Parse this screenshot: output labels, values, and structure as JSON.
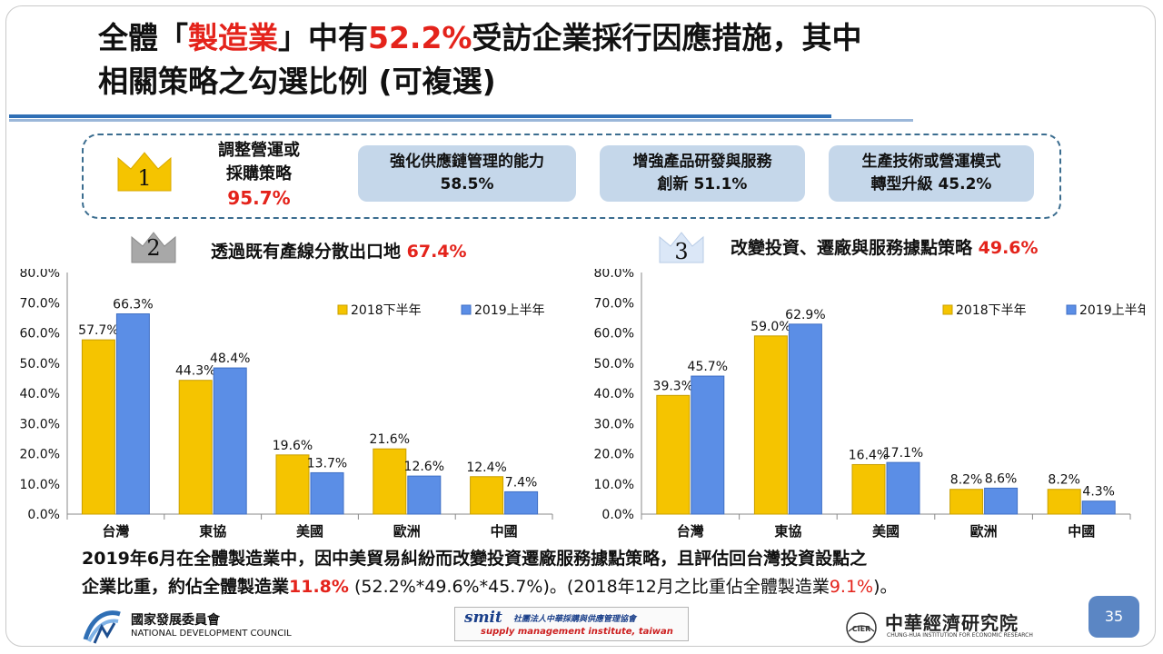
{
  "title": {
    "part1": "全體「",
    "industry": "製造業",
    "part2": "」中有",
    "rate": "52.2%",
    "part3": "受訪企業採行因應措施，其中",
    "line2": "相關策略之勾選比例 (可複選)"
  },
  "top_strategies": {
    "rank1": {
      "rank": "1",
      "line1": "調整營運或",
      "line2": "採購策略",
      "pct": "95.7%"
    },
    "others": [
      {
        "line1": "強化供應鏈管理的能力",
        "line2": "58.5%"
      },
      {
        "line1": "增強產品研發與服務",
        "line2": "創新 51.1%"
      },
      {
        "line1": "生產技術或營運模式",
        "line2": "轉型升級 45.2%"
      }
    ]
  },
  "rank2": {
    "rank": "2",
    "label": "透過既有產線分散出口地",
    "pct": "67.4%"
  },
  "rank3": {
    "rank": "3",
    "label": "改變投資、遷廠與服務據點策略",
    "pct": "49.6%"
  },
  "colors": {
    "red": "#e4231b",
    "series_2018": "#f5c400",
    "series_2019": "#5b8ee6",
    "pill": "#c5d7ea"
  },
  "chart_data": [
    {
      "type": "bar",
      "categories": [
        "台灣",
        "東協",
        "美國",
        "歐洲",
        "中國"
      ],
      "series": [
        {
          "name": "2018下半年",
          "values": [
            57.7,
            44.3,
            19.6,
            21.6,
            12.4
          ]
        },
        {
          "name": "2019上半年",
          "values": [
            66.3,
            48.4,
            13.7,
            12.6,
            7.4
          ]
        }
      ],
      "yticks": [
        "0.0%",
        "10.0%",
        "20.0%",
        "30.0%",
        "40.0%",
        "50.0%",
        "60.0%",
        "70.0%",
        "80.0%"
      ],
      "ylim": [
        0,
        80
      ],
      "legend": "top-right"
    },
    {
      "type": "bar",
      "categories": [
        "台灣",
        "東協",
        "美國",
        "歐洲",
        "中國"
      ],
      "series": [
        {
          "name": "2018下半年",
          "values": [
            39.3,
            59.0,
            16.4,
            8.2,
            8.2
          ]
        },
        {
          "name": "2019上半年",
          "values": [
            45.7,
            62.9,
            17.1,
            8.6,
            4.3
          ]
        }
      ],
      "yticks": [
        "0.0%",
        "10.0%",
        "20.0%",
        "30.0%",
        "40.0%",
        "50.0%",
        "60.0%",
        "70.0%",
        "80.0%"
      ],
      "ylim": [
        0,
        80
      ],
      "legend": "top-right"
    }
  ],
  "conclusion": {
    "line1": "2019年6月在全體製造業中，因中美貿易糾紛而改變投資遷廠服務據點策略，且評估回台灣投資設點之",
    "line2_a": "企業比重，約佔全體製造業",
    "line2_pct": "11.8%",
    "line2_b": " (52.2%*49.6%*45.7%)。",
    "line2_c": "(2018年12月之比重佔全體製造業",
    "line2_pct2": "9.1%",
    "line2_d": ")。"
  },
  "footer": {
    "ndc_name": "國家發展委員會",
    "ndc_en": "NATIONAL DEVELOPMENT COUNCIL",
    "smit_logo": "smit",
    "smit_cn": "社團法人中華採購與供應管理協會",
    "smit_en": "supply management institute, taiwan",
    "cier_logo": "CIER",
    "cier_name": "中華經濟研究院",
    "cier_en": "CHUNG-HUA INSTITUTION FOR ECONOMIC RESEARCH",
    "page_number": "35"
  }
}
